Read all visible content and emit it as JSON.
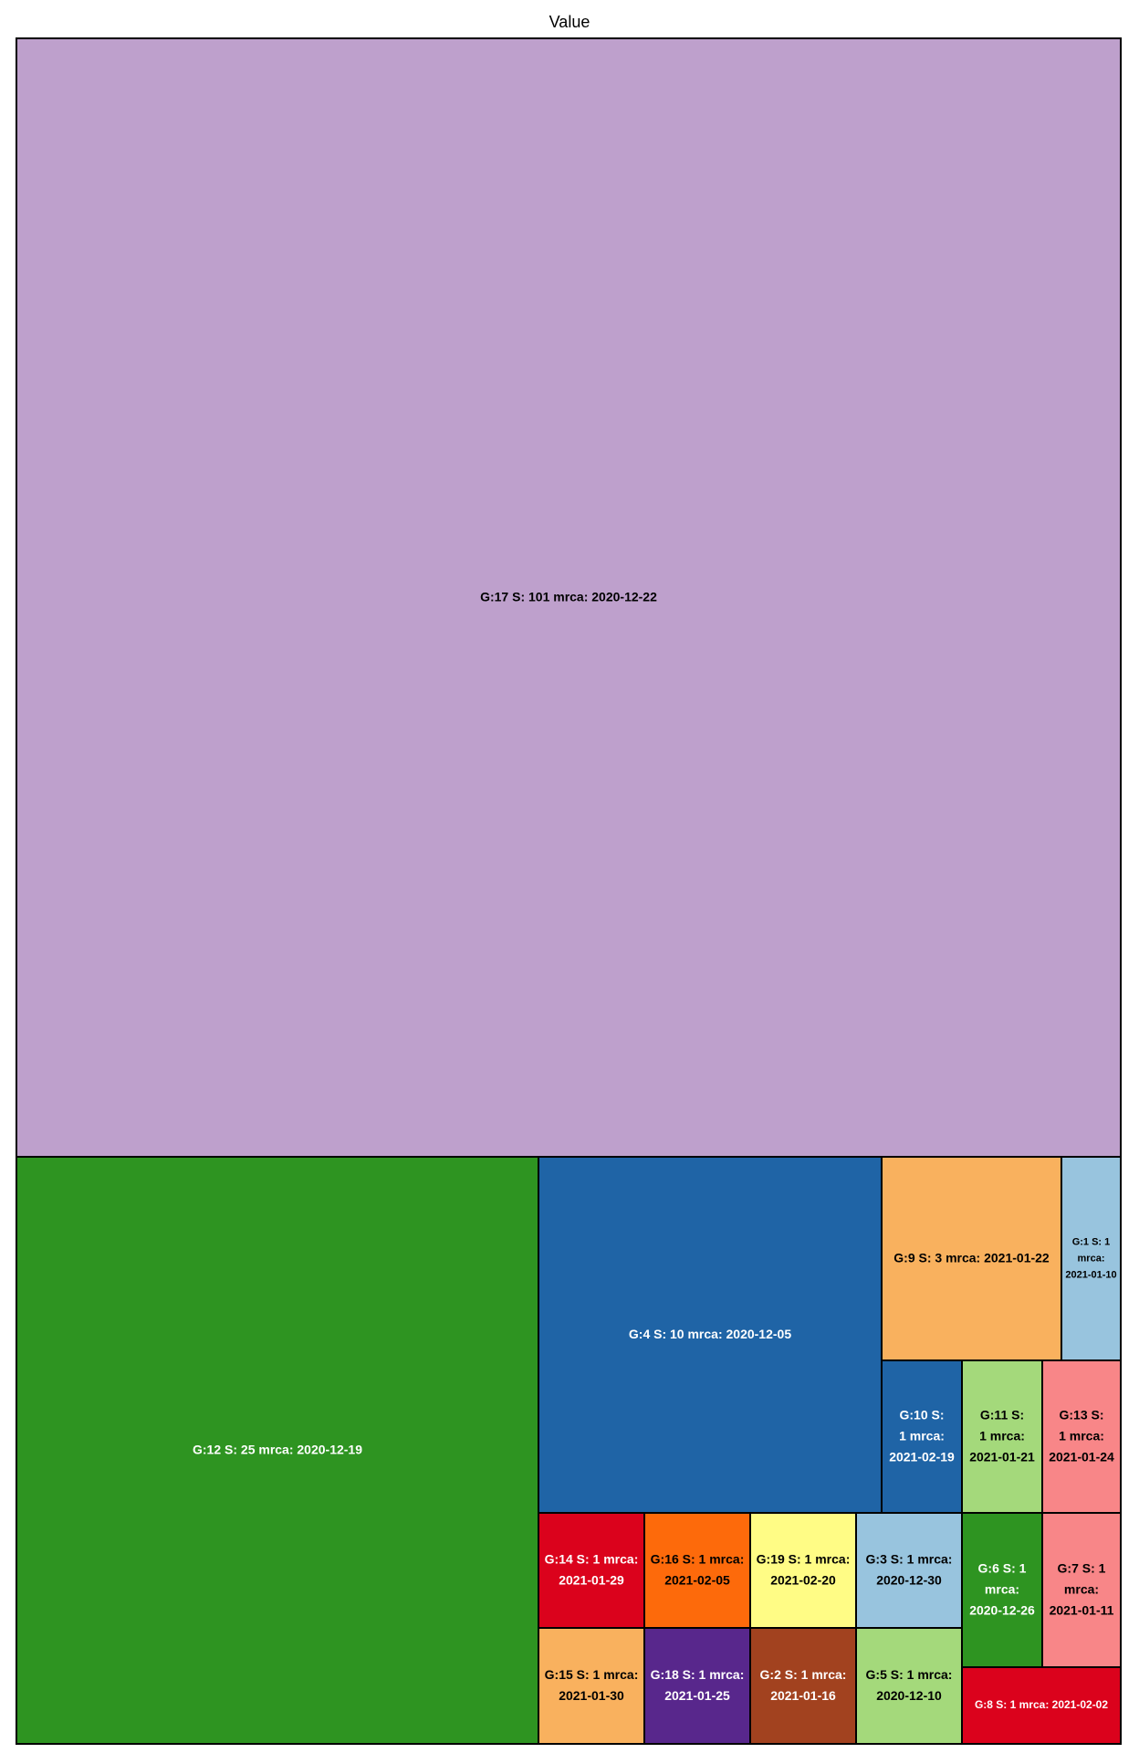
{
  "chart_data": {
    "type": "treemap",
    "title": "Value",
    "tiles": [
      {
        "label": "G:17 S: 101 mrca: 2020-12-22",
        "lines": [
          "G:17 S: 101 mrca: 2020-12-22"
        ],
        "value": 101,
        "color": "#bea0cc",
        "text_color": "#000000"
      },
      {
        "label": "G:12 S: 25 mrca: 2020-12-19",
        "lines": [
          "G:12 S: 25 mrca: 2020-12-19"
        ],
        "value": 25,
        "color": "#2e9421",
        "text_color": "#ffffff"
      },
      {
        "label": "G:4 S: 10 mrca: 2020-12-05",
        "lines": [
          "G:4 S: 10 mrca: 2020-12-05"
        ],
        "value": 10,
        "color": "#1f64a6",
        "text_color": "#ffffff"
      },
      {
        "label": "G:9 S: 3 mrca: 2021-01-22",
        "lines": [
          "G:9 S: 3 mrca: 2021-01-22"
        ],
        "value": 3,
        "color": "#f9b15e",
        "text_color": "#000000"
      },
      {
        "label": "G:1 S: 1 mrca: 2021-01-10",
        "lines": [
          "G:1 S: 1",
          "mrca:",
          "2021-01-10"
        ],
        "value": 1,
        "color": "#98c4de",
        "text_color": "#000000"
      },
      {
        "label": "G:10 S: 1 mrca: 2021-02-19",
        "lines": [
          "G:10 S:",
          "1 mrca:",
          "2021-02-19"
        ],
        "value": 1,
        "color": "#1f64a6",
        "text_color": "#ffffff"
      },
      {
        "label": "G:11 S: 1 mrca: 2021-01-21",
        "lines": [
          "G:11 S:",
          "1 mrca:",
          "2021-01-21"
        ],
        "value": 1,
        "color": "#a4d97b",
        "text_color": "#000000"
      },
      {
        "label": "G:13 S: 1 mrca: 2021-01-24",
        "lines": [
          "G:13 S:",
          "1 mrca:",
          "2021-01-24"
        ],
        "value": 1,
        "color": "#f88688",
        "text_color": "#000000"
      },
      {
        "label": "G:14 S: 1 mrca: 2021-01-29",
        "lines": [
          "G:14 S: 1 mrca:",
          "2021-01-29"
        ],
        "value": 1,
        "color": "#db021c",
        "text_color": "#ffffff"
      },
      {
        "label": "G:16 S: 1 mrca: 2021-02-05",
        "lines": [
          "G:16 S: 1 mrca:",
          "2021-02-05"
        ],
        "value": 1,
        "color": "#fd6a0b",
        "text_color": "#000000"
      },
      {
        "label": "G:19 S: 1 mrca: 2021-02-20",
        "lines": [
          "G:19 S: 1 mrca:",
          "2021-02-20"
        ],
        "value": 1,
        "color": "#fffc85",
        "text_color": "#000000"
      },
      {
        "label": "G:3 S: 1 mrca: 2020-12-30",
        "lines": [
          "G:3 S: 1 mrca:",
          "2020-12-30"
        ],
        "value": 1,
        "color": "#98c4de",
        "text_color": "#000000"
      },
      {
        "label": "G:6 S: 1 mrca: 2020-12-26",
        "lines": [
          "G:6 S: 1",
          "mrca:",
          "2020-12-26"
        ],
        "value": 1,
        "color": "#2e9421",
        "text_color": "#ffffff"
      },
      {
        "label": "G:7 S: 1 mrca: 2021-01-11",
        "lines": [
          "G:7 S: 1",
          "mrca:",
          "2021-01-11"
        ],
        "value": 1,
        "color": "#f88688",
        "text_color": "#000000"
      },
      {
        "label": "G:15 S: 1 mrca: 2021-01-30",
        "lines": [
          "G:15 S: 1 mrca:",
          "2021-01-30"
        ],
        "value": 1,
        "color": "#f9b15e",
        "text_color": "#000000"
      },
      {
        "label": "G:18 S: 1 mrca: 2021-01-25",
        "lines": [
          "G:18 S: 1 mrca:",
          "2021-01-25"
        ],
        "value": 1,
        "color": "#58278c",
        "text_color": "#ffffff"
      },
      {
        "label": "G:2 S: 1 mrca: 2021-01-16",
        "lines": [
          "G:2 S: 1 mrca:",
          "2021-01-16"
        ],
        "value": 1,
        "color": "#a2421f",
        "text_color": "#ffffff"
      },
      {
        "label": "G:5 S: 1 mrca: 2020-12-10",
        "lines": [
          "G:5 S: 1 mrca:",
          "2020-12-10"
        ],
        "value": 1,
        "color": "#a4d97b",
        "text_color": "#000000"
      },
      {
        "label": "G:8 S: 1 mrca: 2021-02-02",
        "lines": [
          "G:8 S: 1 mrca: 2021-02-02"
        ],
        "value": 1,
        "color": "#db021c",
        "text_color": "#ffffff"
      }
    ]
  }
}
